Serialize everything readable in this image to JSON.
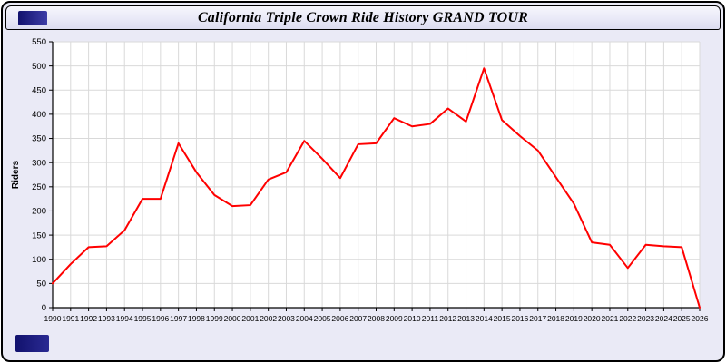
{
  "window": {
    "title": "California Triple Crown Ride History GRAND TOUR"
  },
  "chart_data": {
    "type": "line",
    "title": "California Triple Crown Ride History GRAND TOUR",
    "xlabel": "",
    "ylabel": "Riders",
    "ylim": [
      0,
      550
    ],
    "ytick_step": 50,
    "grid": true,
    "legend_position": "none",
    "series": [
      {
        "name": "Riders",
        "color": "#ff0000",
        "values": [
          50,
          90,
          125,
          127,
          160,
          225,
          225,
          340,
          280,
          233,
          210,
          212,
          265,
          280,
          345,
          308,
          268,
          338,
          340,
          392,
          375,
          380,
          412,
          385,
          495,
          388,
          355,
          325,
          270,
          215,
          135,
          130,
          82,
          130,
          127,
          125,
          0
        ]
      }
    ],
    "x": [
      1990,
      1991,
      1992,
      1993,
      1994,
      1995,
      1996,
      1997,
      1998,
      1999,
      2000,
      2001,
      2002,
      2003,
      2004,
      2005,
      2006,
      2007,
      2008,
      2009,
      2010,
      2011,
      2012,
      2013,
      2014,
      2015,
      2016,
      2017,
      2018,
      2019,
      2020,
      2021,
      2022,
      2023,
      2024,
      2025,
      2026
    ]
  },
  "colors": {
    "panel_background": "#EAEAF6",
    "plot_background": "#FFFFFF",
    "gridline": "#D9D9D9",
    "axis": "#000000",
    "line": "#FF0000",
    "accent_navy": "#12126E"
  }
}
